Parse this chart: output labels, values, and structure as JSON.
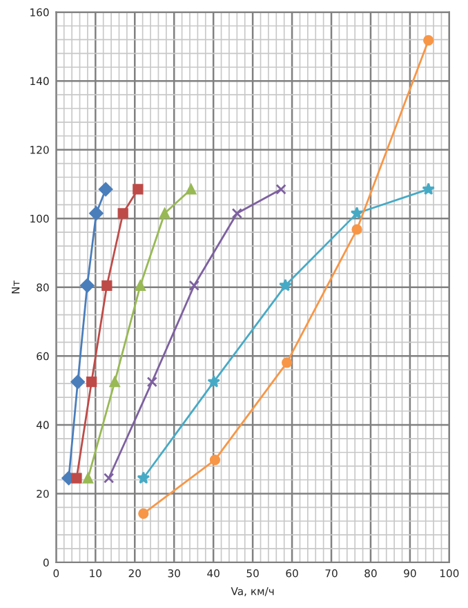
{
  "chart_data": {
    "type": "line",
    "xlabel": "Va, км/ч",
    "ylabel": "Nт",
    "xlim": [
      0,
      100
    ],
    "ylim": [
      0,
      160
    ],
    "xticks": [
      0,
      10,
      20,
      30,
      40,
      50,
      60,
      70,
      80,
      90,
      100
    ],
    "yticks": [
      0,
      20,
      40,
      60,
      80,
      100,
      120,
      140,
      160
    ],
    "grid": true,
    "legend": false,
    "series": [
      {
        "color": "#4a7ebb",
        "marker": "diamond",
        "x": [
          3.2,
          5.5,
          7.9,
          10.2,
          12.6
        ],
        "values": [
          24.5,
          52.5,
          80.5,
          101.5,
          108.5
        ]
      },
      {
        "color": "#be4b48",
        "marker": "square",
        "x": [
          5.2,
          9.0,
          12.9,
          17.0,
          20.8
        ],
        "values": [
          24.5,
          52.5,
          80.5,
          101.5,
          108.5
        ]
      },
      {
        "color": "#98b954",
        "marker": "triangle",
        "x": [
          8.1,
          14.9,
          21.4,
          27.6,
          34.3
        ],
        "values": [
          24.5,
          52.5,
          80.5,
          101.5,
          108.5
        ]
      },
      {
        "color": "#7d60a0",
        "marker": "cross",
        "x": [
          13.4,
          24.4,
          35.1,
          46.0,
          57.2
        ],
        "values": [
          24.5,
          52.5,
          80.5,
          101.5,
          108.5
        ]
      },
      {
        "color": "#46aac5",
        "marker": "star",
        "x": [
          22.2,
          40.1,
          58.3,
          76.5,
          94.7
        ],
        "values": [
          24.5,
          52.5,
          80.5,
          101.5,
          108.5
        ]
      },
      {
        "color": "#f79646",
        "marker": "circle",
        "x": [
          22.2,
          40.4,
          58.7,
          76.5,
          94.7
        ],
        "values": [
          14.2,
          29.8,
          58.1,
          96.8,
          151.8
        ]
      }
    ]
  }
}
